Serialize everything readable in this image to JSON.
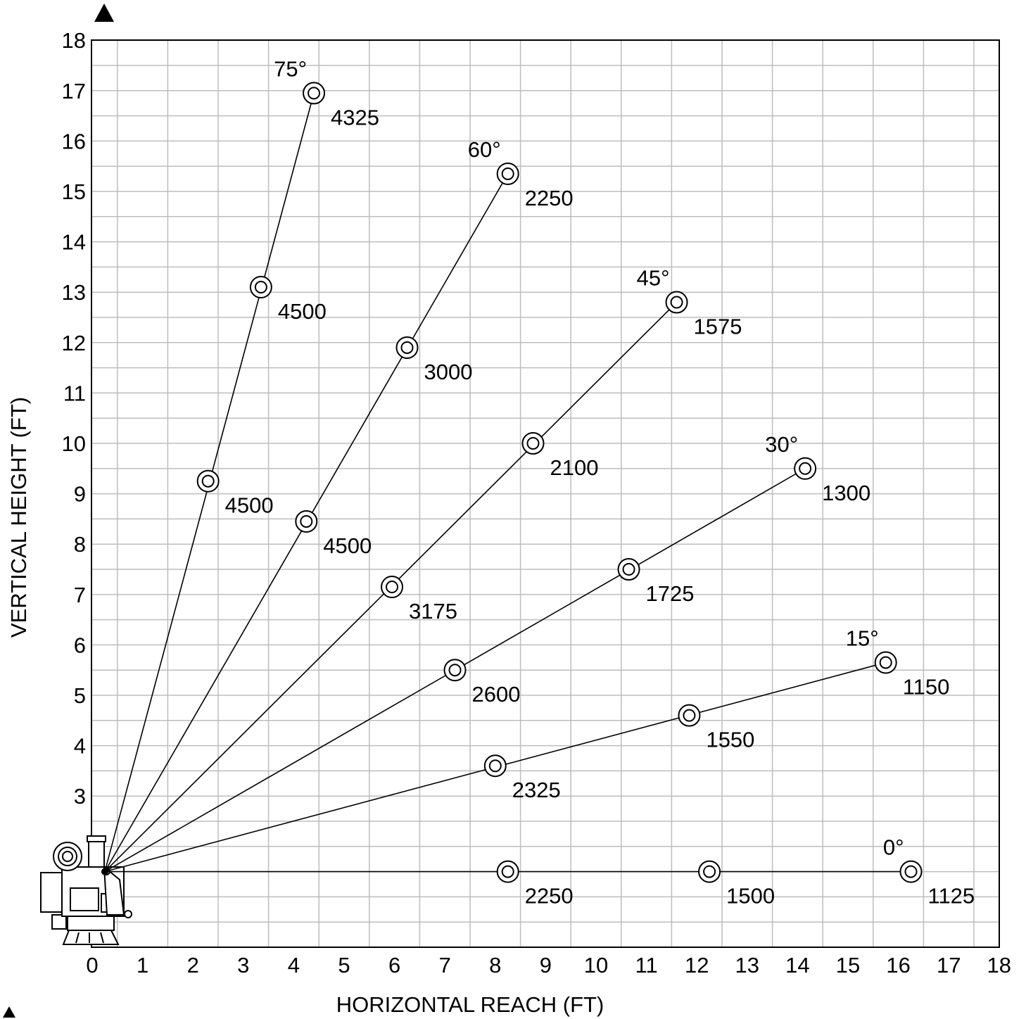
{
  "chart_data": {
    "type": "scatter",
    "title": "",
    "xlabel": "HORIZONTAL REACH (FT)",
    "ylabel": "VERTICAL HEIGHT (FT)",
    "xlim": [
      -0.5,
      18
    ],
    "ylim": [
      0,
      18
    ],
    "grid": true,
    "x_ticks": [
      0,
      1,
      2,
      3,
      4,
      5,
      6,
      7,
      8,
      9,
      10,
      11,
      12,
      13,
      14,
      15,
      16,
      17,
      18
    ],
    "y_ticks": [
      3,
      4,
      5,
      6,
      7,
      8,
      9,
      10,
      11,
      12,
      13,
      14,
      15,
      16,
      17,
      18
    ],
    "origin": {
      "x": 0.25,
      "y": 1.5
    },
    "series": [
      {
        "name": "75°",
        "angle_label": "75°",
        "points": [
          {
            "x": 2.3,
            "y": 9.25,
            "load": "4500"
          },
          {
            "x": 3.35,
            "y": 13.1,
            "load": "4500"
          },
          {
            "x": 4.4,
            "y": 16.95,
            "load": "4325"
          }
        ]
      },
      {
        "name": "60°",
        "angle_label": "60°",
        "points": [
          {
            "x": 4.25,
            "y": 8.45,
            "load": "4500"
          },
          {
            "x": 6.25,
            "y": 11.9,
            "load": "3000"
          },
          {
            "x": 8.25,
            "y": 15.35,
            "load": "2250"
          }
        ]
      },
      {
        "name": "45°",
        "angle_label": "45°",
        "points": [
          {
            "x": 5.95,
            "y": 7.15,
            "load": "3175"
          },
          {
            "x": 8.75,
            "y": 10.0,
            "load": "2100"
          },
          {
            "x": 11.6,
            "y": 12.8,
            "load": "1575"
          }
        ]
      },
      {
        "name": "30°",
        "angle_label": "30°",
        "points": [
          {
            "x": 7.2,
            "y": 5.5,
            "load": "2600"
          },
          {
            "x": 10.65,
            "y": 7.5,
            "load": "1725"
          },
          {
            "x": 14.15,
            "y": 9.5,
            "load": "1300"
          }
        ]
      },
      {
        "name": "15°",
        "angle_label": "15°",
        "points": [
          {
            "x": 8.0,
            "y": 3.6,
            "load": "2325"
          },
          {
            "x": 11.85,
            "y": 4.6,
            "load": "1550"
          },
          {
            "x": 15.75,
            "y": 5.65,
            "load": "1150"
          }
        ]
      },
      {
        "name": "0°",
        "angle_label": "0°",
        "points": [
          {
            "x": 8.25,
            "y": 1.5,
            "load": "2250"
          },
          {
            "x": 12.25,
            "y": 1.5,
            "load": "1500"
          },
          {
            "x": 16.25,
            "y": 1.5,
            "load": "1125"
          }
        ]
      }
    ]
  }
}
